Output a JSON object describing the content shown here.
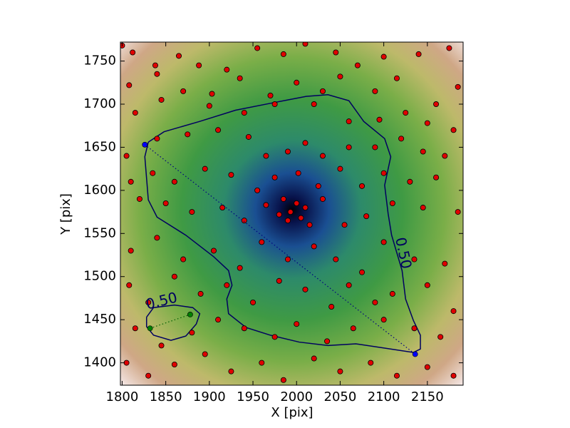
{
  "chart_data": {
    "type": "scatter",
    "x_label": "X [pix]",
    "y_label": "Y [pix]",
    "xlim": [
      1798,
      2191
    ],
    "ylim": [
      1374,
      1772
    ],
    "xticks": [
      1800,
      1850,
      1900,
      1950,
      2000,
      2050,
      2100,
      2150
    ],
    "yticks": [
      1400,
      1450,
      1500,
      1550,
      1600,
      1650,
      1700,
      1750
    ],
    "series": [
      {
        "color": "#e00000",
        "x": [
          1800,
          1812,
          1838,
          1865,
          1888,
          1920,
          1955,
          1985,
          2010,
          2045,
          2070,
          2100,
          2140,
          2175,
          1808,
          1840,
          1870,
          1903,
          1935,
          1970,
          2000,
          2030,
          2050,
          2090,
          2115,
          2160,
          2185,
          1815,
          1845,
          1900,
          1940,
          1975,
          2020,
          2060,
          2095,
          2125,
          2150,
          2180,
          1805,
          1840,
          1875,
          1910,
          1945,
          1965,
          1990,
          2010,
          2030,
          2060,
          2090,
          2120,
          2145,
          2170,
          1810,
          1835,
          1860,
          1895,
          1925,
          1955,
          1975,
          2002,
          2025,
          2050,
          2075,
          2100,
          2130,
          2160,
          1820,
          1850,
          1880,
          1915,
          1940,
          1965,
          1985,
          1993,
          2000,
          1990,
          2005,
          2010,
          1980,
          2015,
          2030,
          2055,
          2080,
          2110,
          2145,
          2185,
          1810,
          1840,
          1870,
          1905,
          1935,
          1960,
          1990,
          2020,
          2045,
          2075,
          2100,
          2135,
          2170,
          1808,
          1830,
          1860,
          1890,
          1920,
          1950,
          1980,
          2010,
          2040,
          2060,
          2090,
          2110,
          2150,
          2180,
          1815,
          1845,
          1880,
          1910,
          1940,
          1975,
          2000,
          2035,
          2065,
          2100,
          2135,
          2165,
          1805,
          1830,
          1860,
          1895,
          1925,
          1960,
          1985,
          2020,
          2050,
          2085,
          2115,
          2150,
          2180
        ],
        "y": [
          1768,
          1760,
          1745,
          1756,
          1745,
          1740,
          1765,
          1758,
          1770,
          1760,
          1745,
          1755,
          1758,
          1765,
          1722,
          1735,
          1715,
          1712,
          1730,
          1710,
          1725,
          1715,
          1732,
          1715,
          1730,
          1700,
          1720,
          1690,
          1705,
          1698,
          1690,
          1700,
          1700,
          1680,
          1682,
          1690,
          1678,
          1670,
          1640,
          1660,
          1665,
          1670,
          1662,
          1640,
          1645,
          1655,
          1640,
          1650,
          1650,
          1660,
          1645,
          1640,
          1610,
          1620,
          1610,
          1625,
          1618,
          1600,
          1615,
          1620,
          1605,
          1625,
          1605,
          1620,
          1610,
          1615,
          1590,
          1585,
          1575,
          1580,
          1565,
          1583,
          1590,
          1575,
          1585,
          1565,
          1568,
          1580,
          1572,
          1560,
          1590,
          1560,
          1570,
          1585,
          1580,
          1575,
          1530,
          1545,
          1520,
          1530,
          1510,
          1540,
          1520,
          1535,
          1520,
          1505,
          1540,
          1520,
          1515,
          1490,
          1470,
          1500,
          1480,
          1490,
          1470,
          1495,
          1485,
          1465,
          1490,
          1470,
          1480,
          1490,
          1460,
          1440,
          1420,
          1435,
          1450,
          1440,
          1430,
          1445,
          1425,
          1440,
          1450,
          1440,
          1430,
          1400,
          1385,
          1398,
          1410,
          1390,
          1400,
          1380,
          1405,
          1390,
          1400,
          1385,
          1395,
          1385
        ]
      }
    ],
    "contours": [
      {
        "label": "0.50",
        "color": "#000060",
        "x": [
          1830,
          1848,
          1889,
          1930,
          1970,
          2011,
          2036,
          2060,
          2077,
          2101,
          2108,
          2101,
          2105,
          2109,
          2121,
          2125,
          2134,
          2142,
          2142,
          2134,
          2101,
          2068,
          2036,
          2003,
          1970,
          1942,
          1922,
          1920,
          1926,
          1922,
          1905,
          1873,
          1840,
          1830,
          1828,
          1826,
          1830
        ],
        "y": [
          1656,
          1668,
          1680,
          1693,
          1701,
          1709,
          1711,
          1704,
          1680,
          1660,
          1639,
          1606,
          1573,
          1548,
          1507,
          1474,
          1449,
          1432,
          1416,
          1412,
          1417,
          1422,
          1420,
          1424,
          1432,
          1441,
          1457,
          1474,
          1490,
          1507,
          1523,
          1548,
          1569,
          1589,
          1614,
          1639,
          1656
        ]
      },
      {
        "label": "0.50",
        "color": "#000060",
        "x": [
          1828,
          1836,
          1860,
          1881,
          1889,
          1885,
          1873,
          1856,
          1836,
          1828,
          1828
        ],
        "y": [
          1453,
          1464,
          1467,
          1464,
          1457,
          1445,
          1431,
          1426,
          1432,
          1442,
          1453
        ]
      }
    ],
    "links": [
      {
        "color": "#0000ff",
        "line_color": "#000080",
        "x": [
          1826,
          2136
        ],
        "y": [
          1653,
          1410
        ]
      },
      {
        "color": "#008000",
        "line_color": "#006000",
        "x": [
          1832,
          1878
        ],
        "y": [
          1440,
          1456
        ]
      }
    ]
  }
}
